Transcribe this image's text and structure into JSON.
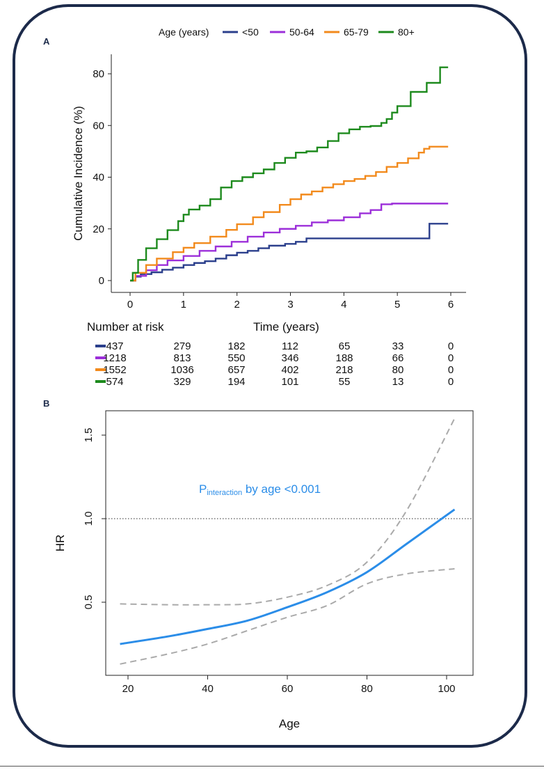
{
  "panel_a_label": "A",
  "panel_b_label": "B",
  "chart_data": [
    {
      "type": "line",
      "subtype": "step",
      "title": "",
      "xlabel": "Time (years)",
      "ylabel": "Cumulative Incidence (%)",
      "xlim": [
        0,
        6
      ],
      "ylim": [
        0,
        85
      ],
      "xticks": [
        "0",
        "1",
        "2",
        "3",
        "4",
        "5",
        "6"
      ],
      "yticks": [
        "0",
        "20",
        "40",
        "60",
        "80"
      ],
      "legend_title": "Age (years)",
      "legend_position": "top",
      "series": [
        {
          "name": "<50",
          "color": "#2b3f8c",
          "points": [
            [
              0,
              0
            ],
            [
              0.1,
              1.5
            ],
            [
              0.2,
              2.5
            ],
            [
              0.4,
              3.2
            ],
            [
              0.6,
              4.2
            ],
            [
              0.8,
              5.0
            ],
            [
              1.0,
              6.0
            ],
            [
              1.2,
              6.8
            ],
            [
              1.4,
              7.5
            ],
            [
              1.6,
              8.5
            ],
            [
              1.8,
              9.8
            ],
            [
              2.0,
              10.8
            ],
            [
              2.2,
              11.5
            ],
            [
              2.4,
              12.5
            ],
            [
              2.6,
              13.5
            ],
            [
              2.9,
              14.2
            ],
            [
              3.1,
              15.0
            ],
            [
              3.3,
              16.3
            ],
            [
              3.6,
              16.3
            ],
            [
              4.0,
              16.3
            ],
            [
              4.5,
              16.3
            ],
            [
              5.0,
              16.3
            ],
            [
              5.6,
              16.3
            ],
            [
              5.6,
              22.0
            ],
            [
              5.95,
              22.0
            ]
          ]
        },
        {
          "name": "50-64",
          "color": "#9c2fd9",
          "points": [
            [
              0,
              0
            ],
            [
              0.1,
              1.8
            ],
            [
              0.3,
              4.0
            ],
            [
              0.5,
              6.0
            ],
            [
              0.7,
              7.8
            ],
            [
              1.0,
              9.5
            ],
            [
              1.3,
              11.5
            ],
            [
              1.6,
              13.2
            ],
            [
              1.9,
              15.0
            ],
            [
              2.2,
              17.0
            ],
            [
              2.5,
              18.6
            ],
            [
              2.8,
              20.0
            ],
            [
              3.1,
              21.2
            ],
            [
              3.4,
              22.5
            ],
            [
              3.7,
              23.3
            ],
            [
              4.0,
              24.5
            ],
            [
              4.3,
              26.0
            ],
            [
              4.5,
              27.3
            ],
            [
              4.7,
              29.5
            ],
            [
              4.9,
              29.8
            ],
            [
              5.5,
              29.8
            ],
            [
              5.95,
              29.8
            ]
          ]
        },
        {
          "name": "65-79",
          "color": "#f28a1c",
          "points": [
            [
              0,
              0
            ],
            [
              0.1,
              3.0
            ],
            [
              0.3,
              6.0
            ],
            [
              0.5,
              8.5
            ],
            [
              0.8,
              11.0
            ],
            [
              1.0,
              12.7
            ],
            [
              1.2,
              14.5
            ],
            [
              1.5,
              17.0
            ],
            [
              1.8,
              19.6
            ],
            [
              2.0,
              21.8
            ],
            [
              2.3,
              24.5
            ],
            [
              2.5,
              26.5
            ],
            [
              2.8,
              29.3
            ],
            [
              3.0,
              31.5
            ],
            [
              3.2,
              33.3
            ],
            [
              3.4,
              34.5
            ],
            [
              3.6,
              36.0
            ],
            [
              3.8,
              37.3
            ],
            [
              4.0,
              38.5
            ],
            [
              4.2,
              39.3
            ],
            [
              4.4,
              40.5
            ],
            [
              4.6,
              42.0
            ],
            [
              4.8,
              44.0
            ],
            [
              5.0,
              45.5
            ],
            [
              5.2,
              47.3
            ],
            [
              5.4,
              49.5
            ],
            [
              5.5,
              51.0
            ],
            [
              5.6,
              51.8
            ],
            [
              5.95,
              51.8
            ]
          ]
        },
        {
          "name": "80+",
          "color": "#1d8a1d",
          "points": [
            [
              0,
              0
            ],
            [
              0.05,
              3.0
            ],
            [
              0.15,
              8.0
            ],
            [
              0.3,
              12.5
            ],
            [
              0.5,
              16.0
            ],
            [
              0.7,
              19.5
            ],
            [
              0.9,
              23.0
            ],
            [
              1.0,
              25.5
            ],
            [
              1.1,
              27.5
            ],
            [
              1.3,
              29.0
            ],
            [
              1.5,
              31.5
            ],
            [
              1.7,
              36.0
            ],
            [
              1.9,
              38.5
            ],
            [
              2.1,
              40.0
            ],
            [
              2.3,
              41.5
            ],
            [
              2.5,
              43.0
            ],
            [
              2.7,
              45.5
            ],
            [
              2.9,
              47.5
            ],
            [
              3.1,
              49.5
            ],
            [
              3.3,
              50.0
            ],
            [
              3.5,
              51.5
            ],
            [
              3.7,
              54.0
            ],
            [
              3.9,
              57.0
            ],
            [
              4.1,
              58.5
            ],
            [
              4.3,
              59.5
            ],
            [
              4.5,
              59.8
            ],
            [
              4.7,
              61.0
            ],
            [
              4.8,
              62.5
            ],
            [
              4.9,
              65.0
            ],
            [
              5.0,
              67.5
            ],
            [
              5.2,
              67.5
            ],
            [
              5.25,
              73.0
            ],
            [
              5.5,
              73.0
            ],
            [
              5.55,
              76.5
            ],
            [
              5.8,
              76.5
            ],
            [
              5.8,
              82.5
            ],
            [
              5.95,
              82.5
            ]
          ]
        }
      ],
      "risk_table": {
        "title": "Number at risk",
        "times": [
          0,
          1,
          2,
          3,
          4,
          5,
          6
        ],
        "rows": [
          {
            "group": "<50",
            "color": "#2b3f8c",
            "values": [
              "437",
              "279",
              "182",
              "112",
              "65",
              "33",
              "0"
            ]
          },
          {
            "group": "50-64",
            "color": "#9c2fd9",
            "values": [
              "1218",
              "813",
              "550",
              "346",
              "188",
              "66",
              "0"
            ]
          },
          {
            "group": "65-79",
            "color": "#f28a1c",
            "values": [
              "1552",
              "1036",
              "657",
              "402",
              "218",
              "80",
              "0"
            ]
          },
          {
            "group": "80+",
            "color": "#1d8a1d",
            "values": [
              "574",
              "329",
              "194",
              "101",
              "55",
              "13",
              "0"
            ]
          }
        ]
      }
    },
    {
      "type": "line",
      "title": "",
      "xlabel": "Age",
      "ylabel": "HR",
      "xlim": [
        16,
        106
      ],
      "ylim": [
        0.1,
        1.62
      ],
      "xticks": [
        "20",
        "40",
        "60",
        "80",
        "100"
      ],
      "yticks": [
        "0.5",
        "1.0",
        "1.5"
      ],
      "reference_line": {
        "y": 1.0,
        "style": "dotted",
        "color": "#555555"
      },
      "annotation": {
        "main": "P",
        "subscript": "interaction",
        "rest": " by age <0.001",
        "color": "#2b8de8"
      },
      "series": [
        {
          "name": "HR",
          "color": "#2b8de8",
          "style": "solid",
          "points": [
            [
              18,
              0.25
            ],
            [
              30,
              0.295
            ],
            [
              40,
              0.34
            ],
            [
              50,
              0.39
            ],
            [
              60,
              0.47
            ],
            [
              70,
              0.56
            ],
            [
              80,
              0.68
            ],
            [
              90,
              0.85
            ],
            [
              102,
              1.055
            ]
          ]
        },
        {
          "name": "upper 95% CI",
          "color": "#aaaaaa",
          "style": "dashed",
          "points": [
            [
              18,
              0.49
            ],
            [
              30,
              0.485
            ],
            [
              40,
              0.485
            ],
            [
              50,
              0.49
            ],
            [
              60,
              0.53
            ],
            [
              70,
              0.6
            ],
            [
              80,
              0.74
            ],
            [
              90,
              1.05
            ],
            [
              102,
              1.6
            ]
          ]
        },
        {
          "name": "lower 95% CI",
          "color": "#aaaaaa",
          "style": "dashed",
          "points": [
            [
              18,
              0.13
            ],
            [
              30,
              0.19
            ],
            [
              40,
              0.25
            ],
            [
              50,
              0.33
            ],
            [
              60,
              0.41
            ],
            [
              70,
              0.48
            ],
            [
              80,
              0.61
            ],
            [
              90,
              0.67
            ],
            [
              102,
              0.7
            ]
          ]
        }
      ]
    }
  ]
}
